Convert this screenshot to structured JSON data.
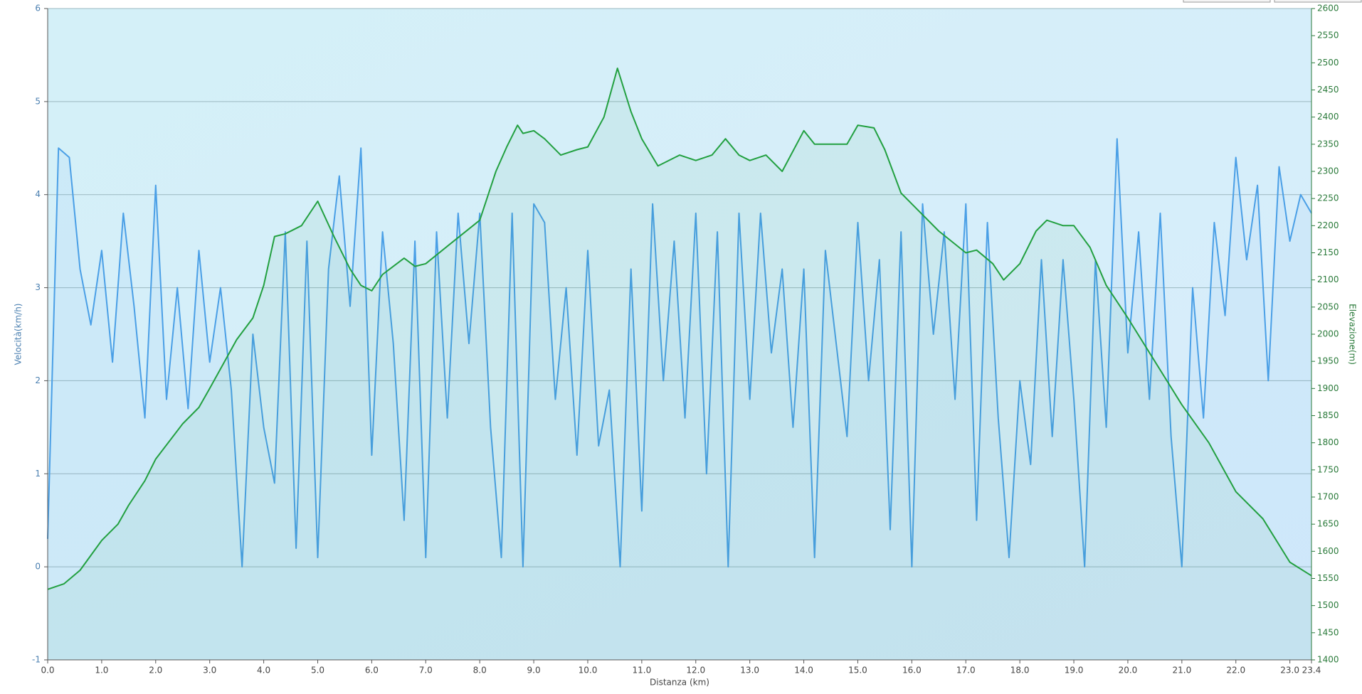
{
  "chart_data": {
    "type": "line",
    "xlabel": "Distanza  (km)",
    "ylabel": "Velocità(km/h)",
    "y2label": "Elevazione(m)",
    "xlim": [
      0,
      23.4
    ],
    "xticks": [
      {
        "value": 0,
        "label": "0.0"
      },
      {
        "value": 1,
        "label": "1.0"
      },
      {
        "value": 2,
        "label": "2.0"
      },
      {
        "value": 3,
        "label": "3.0"
      },
      {
        "value": 4,
        "label": "4.0"
      },
      {
        "value": 5,
        "label": "5.0"
      },
      {
        "value": 6,
        "label": "6.0"
      },
      {
        "value": 7,
        "label": "7.0"
      },
      {
        "value": 8,
        "label": "8.0"
      },
      {
        "value": 9,
        "label": "9.0"
      },
      {
        "value": 10,
        "label": "10.0"
      },
      {
        "value": 11,
        "label": "11.0"
      },
      {
        "value": 12,
        "label": "12.0"
      },
      {
        "value": 13,
        "label": "13.0"
      },
      {
        "value": 14,
        "label": "14.0"
      },
      {
        "value": 15,
        "label": "15.0"
      },
      {
        "value": 16,
        "label": "16.0"
      },
      {
        "value": 17,
        "label": "17.0"
      },
      {
        "value": 18,
        "label": "18.0"
      },
      {
        "value": 19,
        "label": "19.0"
      },
      {
        "value": 20,
        "label": "20.0"
      },
      {
        "value": 21,
        "label": "21.0"
      },
      {
        "value": 22,
        "label": "22.0"
      },
      {
        "value": 23,
        "label": "23.0"
      },
      23.4
    ],
    "ylim": [
      -1,
      6
    ],
    "yticks": [
      -1,
      0,
      1,
      2,
      3,
      4,
      5,
      6
    ],
    "y2lim": [
      1400,
      2600
    ],
    "y2ticks": [
      1400,
      1450,
      1500,
      1550,
      1600,
      1650,
      1700,
      1750,
      1800,
      1850,
      1900,
      1950,
      2000,
      2050,
      2100,
      2150,
      2200,
      2250,
      2300,
      2350,
      2400,
      2450,
      2500,
      2550,
      2600
    ],
    "grid": true,
    "series": [
      {
        "color": "#4a9fe6",
        "axis": "y",
        "x": [
          0.0,
          0.2,
          0.4,
          0.6,
          0.8,
          1.0,
          1.2,
          1.4,
          1.6,
          1.8,
          2.0,
          2.2,
          2.4,
          2.6,
          2.8,
          3.0,
          3.2,
          3.4,
          3.6,
          3.8,
          4.0,
          4.2,
          4.4,
          4.6,
          4.8,
          5.0,
          5.2,
          5.4,
          5.6,
          5.8,
          6.0,
          6.2,
          6.4,
          6.6,
          6.8,
          7.0,
          7.2,
          7.4,
          7.6,
          7.8,
          8.0,
          8.2,
          8.4,
          8.6,
          8.8,
          9.0,
          9.2,
          9.4,
          9.6,
          9.8,
          10.0,
          10.2,
          10.4,
          10.6,
          10.8,
          11.0,
          11.2,
          11.4,
          11.6,
          11.8,
          12.0,
          12.2,
          12.4,
          12.6,
          12.8,
          13.0,
          13.2,
          13.4,
          13.6,
          13.8,
          14.0,
          14.2,
          14.4,
          14.6,
          14.8,
          15.0,
          15.2,
          15.4,
          15.6,
          15.8,
          16.0,
          16.2,
          16.4,
          16.6,
          16.8,
          17.0,
          17.2,
          17.4,
          17.6,
          17.8,
          18.0,
          18.2,
          18.4,
          18.6,
          18.8,
          19.0,
          19.2,
          19.4,
          19.6,
          19.8,
          20.0,
          20.2,
          20.4,
          20.6,
          20.8,
          21.0,
          21.2,
          21.4,
          21.6,
          21.8,
          22.0,
          22.2,
          22.4,
          22.6,
          22.8,
          23.0,
          23.2,
          23.4
        ],
        "values": [
          0.3,
          4.5,
          4.4,
          3.2,
          2.6,
          3.4,
          2.2,
          3.8,
          2.8,
          1.6,
          4.1,
          1.8,
          3.0,
          1.7,
          3.4,
          2.2,
          3.0,
          1.9,
          0.0,
          2.5,
          1.5,
          0.9,
          3.6,
          0.2,
          3.5,
          0.1,
          3.2,
          4.2,
          2.8,
          4.5,
          1.2,
          3.6,
          2.4,
          0.5,
          3.5,
          0.1,
          3.6,
          1.6,
          3.8,
          2.4,
          3.8,
          1.5,
          0.1,
          3.8,
          0.0,
          3.9,
          3.7,
          1.8,
          3.0,
          1.2,
          3.4,
          1.3,
          1.9,
          0.0,
          3.2,
          0.6,
          3.9,
          2.0,
          3.5,
          1.6,
          3.8,
          1.0,
          3.6,
          0.0,
          3.8,
          1.8,
          3.8,
          2.3,
          3.2,
          1.5,
          3.2,
          0.1,
          3.4,
          2.4,
          1.4,
          3.7,
          2.0,
          3.3,
          0.4,
          3.6,
          0.0,
          3.9,
          2.5,
          3.6,
          1.8,
          3.9,
          0.5,
          3.7,
          1.6,
          0.1,
          2.0,
          1.1,
          3.3,
          1.4,
          3.3,
          1.8,
          0.0,
          3.3,
          1.5,
          4.6,
          2.3,
          3.6,
          1.8,
          3.8,
          1.4,
          0.0,
          3.0,
          1.6,
          3.7,
          2.7,
          4.4,
          3.3,
          4.1,
          2.0,
          4.3,
          3.5,
          4.0,
          3.8
        ]
      },
      {
        "color": "#22a040",
        "axis": "y2",
        "x": [
          0,
          0.3,
          0.6,
          1.0,
          1.3,
          1.5,
          1.8,
          2.0,
          2.5,
          2.8,
          3.0,
          3.5,
          3.8,
          4.0,
          4.2,
          4.4,
          4.7,
          5.0,
          5.3,
          5.6,
          5.8,
          6.0,
          6.2,
          6.6,
          6.8,
          7.0,
          7.5,
          8.0,
          8.3,
          8.5,
          8.7,
          8.8,
          9.0,
          9.2,
          9.5,
          9.8,
          10.0,
          10.3,
          10.55,
          10.8,
          11.0,
          11.3,
          11.7,
          12.0,
          12.3,
          12.55,
          12.8,
          13.0,
          13.3,
          13.6,
          14.0,
          14.2,
          14.5,
          14.8,
          15.0,
          15.3,
          15.5,
          15.8,
          16.0,
          16.5,
          17.0,
          17.2,
          17.5,
          17.7,
          18.0,
          18.3,
          18.5,
          18.8,
          19.0,
          19.3,
          19.6,
          20.0,
          20.5,
          21.0,
          21.5,
          22.0,
          22.5,
          23.0,
          23.4
        ],
        "values": [
          1530,
          1540,
          1565,
          1620,
          1650,
          1685,
          1730,
          1770,
          1835,
          1865,
          1900,
          1990,
          2030,
          2090,
          2180,
          2185,
          2200,
          2245,
          2180,
          2120,
          2090,
          2080,
          2110,
          2140,
          2125,
          2130,
          2170,
          2210,
          2300,
          2345,
          2385,
          2370,
          2375,
          2360,
          2330,
          2340,
          2345,
          2400,
          2490,
          2410,
          2360,
          2310,
          2330,
          2320,
          2330,
          2360,
          2330,
          2320,
          2330,
          2300,
          2375,
          2350,
          2350,
          2350,
          2385,
          2380,
          2340,
          2260,
          2240,
          2190,
          2150,
          2155,
          2130,
          2100,
          2130,
          2190,
          2210,
          2200,
          2200,
          2160,
          2090,
          2030,
          1950,
          1870,
          1800,
          1710,
          1660,
          1580,
          1555
        ]
      }
    ]
  }
}
